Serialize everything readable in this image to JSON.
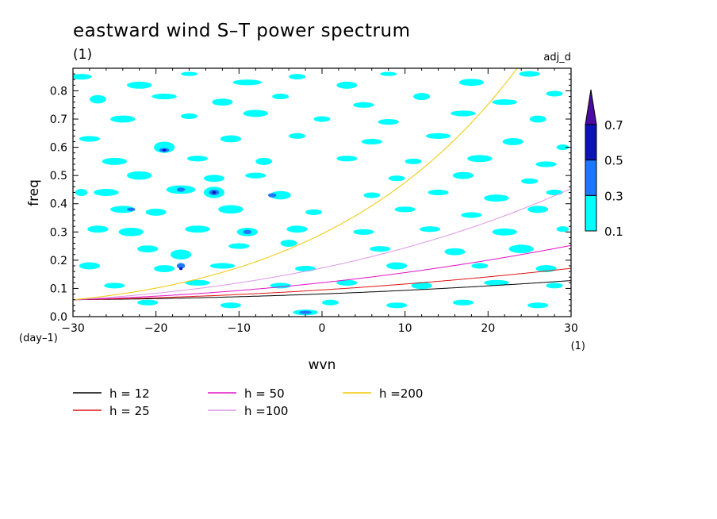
{
  "chart_data": {
    "type": "contour",
    "title": "eastward wind S–T power spectrum",
    "subtitle": "(1)",
    "tag": "adj_d",
    "xlabel": "wvn",
    "ylabel": "freq",
    "x_unit": "(1)",
    "y_unit": "(day–1)",
    "xlim": [
      -30,
      30
    ],
    "ylim": [
      0,
      0.88
    ],
    "x_ticks": [
      -30,
      -20,
      -10,
      0,
      10,
      20,
      30
    ],
    "y_ticks": [
      0.0,
      0.1,
      0.2,
      0.3,
      0.4,
      0.5,
      0.6,
      0.7,
      0.8
    ],
    "x_tick_labels": [
      "−30",
      "−20",
      "−10",
      "0",
      "10",
      "20",
      "30"
    ],
    "y_tick_labels": [
      "0.0",
      "0.1",
      "0.2",
      "0.3",
      "0.4",
      "0.5",
      "0.6",
      "0.7",
      "0.8"
    ],
    "colorbar": {
      "levels": [
        "0.1",
        "0.3",
        "0.5",
        "0.7"
      ],
      "colors": [
        "#00ffff",
        "#1e78ff",
        "#0a14b4",
        "#4b0aa0"
      ],
      "extend": "max"
    },
    "contour_blobs_level_0_1": [
      {
        "x": -29,
        "y": 0.85,
        "w": 2.5,
        "h": 0.02
      },
      {
        "x": -22,
        "y": 0.82,
        "w": 3,
        "h": 0.025
      },
      {
        "x": -16,
        "y": 0.86,
        "w": 2,
        "h": 0.015
      },
      {
        "x": -9,
        "y": 0.83,
        "w": 3.5,
        "h": 0.02
      },
      {
        "x": -3,
        "y": 0.85,
        "w": 2,
        "h": 0.02
      },
      {
        "x": 3,
        "y": 0.82,
        "w": 2.5,
        "h": 0.025
      },
      {
        "x": 8,
        "y": 0.86,
        "w": 2,
        "h": 0.015
      },
      {
        "x": 18,
        "y": 0.83,
        "w": 3,
        "h": 0.025
      },
      {
        "x": 25,
        "y": 0.86,
        "w": 2.5,
        "h": 0.02
      },
      {
        "x": -27,
        "y": 0.77,
        "w": 2,
        "h": 0.03
      },
      {
        "x": -19,
        "y": 0.78,
        "w": 3,
        "h": 0.02
      },
      {
        "x": -12,
        "y": 0.76,
        "w": 2.5,
        "h": 0.025
      },
      {
        "x": -5,
        "y": 0.78,
        "w": 2,
        "h": 0.02
      },
      {
        "x": 5,
        "y": 0.75,
        "w": 2.5,
        "h": 0.02
      },
      {
        "x": 12,
        "y": 0.78,
        "w": 2,
        "h": 0.025
      },
      {
        "x": 22,
        "y": 0.76,
        "w": 3,
        "h": 0.02
      },
      {
        "x": 28,
        "y": 0.79,
        "w": 2,
        "h": 0.02
      },
      {
        "x": -24,
        "y": 0.7,
        "w": 3,
        "h": 0.025
      },
      {
        "x": -16,
        "y": 0.71,
        "w": 2,
        "h": 0.02
      },
      {
        "x": -8,
        "y": 0.72,
        "w": 3,
        "h": 0.025
      },
      {
        "x": 0,
        "y": 0.7,
        "w": 2,
        "h": 0.02
      },
      {
        "x": 8,
        "y": 0.69,
        "w": 2.5,
        "h": 0.02
      },
      {
        "x": 17,
        "y": 0.72,
        "w": 3,
        "h": 0.02
      },
      {
        "x": 26,
        "y": 0.7,
        "w": 2,
        "h": 0.025
      },
      {
        "x": -28,
        "y": 0.63,
        "w": 2.5,
        "h": 0.02
      },
      {
        "x": -19,
        "y": 0.6,
        "w": 2.5,
        "h": 0.04
      },
      {
        "x": -11,
        "y": 0.63,
        "w": 2.5,
        "h": 0.025
      },
      {
        "x": -3,
        "y": 0.64,
        "w": 2,
        "h": 0.02
      },
      {
        "x": 6,
        "y": 0.62,
        "w": 2.5,
        "h": 0.02
      },
      {
        "x": 14,
        "y": 0.64,
        "w": 3,
        "h": 0.02
      },
      {
        "x": 23,
        "y": 0.62,
        "w": 2.5,
        "h": 0.025
      },
      {
        "x": 29,
        "y": 0.6,
        "w": 1.5,
        "h": 0.02
      },
      {
        "x": -25,
        "y": 0.55,
        "w": 3,
        "h": 0.025
      },
      {
        "x": -15,
        "y": 0.56,
        "w": 2.5,
        "h": 0.02
      },
      {
        "x": -7,
        "y": 0.55,
        "w": 2,
        "h": 0.025
      },
      {
        "x": 3,
        "y": 0.56,
        "w": 2.5,
        "h": 0.02
      },
      {
        "x": 11,
        "y": 0.55,
        "w": 2,
        "h": 0.02
      },
      {
        "x": 19,
        "y": 0.56,
        "w": 3,
        "h": 0.025
      },
      {
        "x": 27,
        "y": 0.54,
        "w": 2.5,
        "h": 0.02
      },
      {
        "x": -22,
        "y": 0.5,
        "w": 3,
        "h": 0.03
      },
      {
        "x": -13,
        "y": 0.49,
        "w": 2.5,
        "h": 0.025
      },
      {
        "x": -8,
        "y": 0.5,
        "w": 2.5,
        "h": 0.02
      },
      {
        "x": 9,
        "y": 0.49,
        "w": 2,
        "h": 0.02
      },
      {
        "x": 17,
        "y": 0.5,
        "w": 2.5,
        "h": 0.025
      },
      {
        "x": 25,
        "y": 0.48,
        "w": 2,
        "h": 0.02
      },
      {
        "x": -29,
        "y": 0.44,
        "w": 1.5,
        "h": 0.025
      },
      {
        "x": -26,
        "y": 0.44,
        "w": 3,
        "h": 0.025
      },
      {
        "x": -17,
        "y": 0.45,
        "w": 3.5,
        "h": 0.03
      },
      {
        "x": -13,
        "y": 0.44,
        "w": 2.5,
        "h": 0.04
      },
      {
        "x": -5,
        "y": 0.43,
        "w": 2.5,
        "h": 0.03
      },
      {
        "x": 6,
        "y": 0.43,
        "w": 2,
        "h": 0.02
      },
      {
        "x": 14,
        "y": 0.44,
        "w": 2.5,
        "h": 0.02
      },
      {
        "x": 21,
        "y": 0.42,
        "w": 3,
        "h": 0.025
      },
      {
        "x": 28,
        "y": 0.44,
        "w": 2,
        "h": 0.02
      },
      {
        "x": -24,
        "y": 0.38,
        "w": 3,
        "h": 0.025
      },
      {
        "x": -20,
        "y": 0.37,
        "w": 2.5,
        "h": 0.025
      },
      {
        "x": -11,
        "y": 0.38,
        "w": 3,
        "h": 0.03
      },
      {
        "x": -1,
        "y": 0.37,
        "w": 2,
        "h": 0.02
      },
      {
        "x": 10,
        "y": 0.38,
        "w": 2.5,
        "h": 0.02
      },
      {
        "x": 18,
        "y": 0.36,
        "w": 2.5,
        "h": 0.02
      },
      {
        "x": 26,
        "y": 0.38,
        "w": 2.5,
        "h": 0.025
      },
      {
        "x": -27,
        "y": 0.31,
        "w": 2.5,
        "h": 0.025
      },
      {
        "x": -23,
        "y": 0.3,
        "w": 3,
        "h": 0.03
      },
      {
        "x": -15,
        "y": 0.31,
        "w": 3,
        "h": 0.025
      },
      {
        "x": -9,
        "y": 0.3,
        "w": 2.5,
        "h": 0.03
      },
      {
        "x": -3,
        "y": 0.31,
        "w": 2.5,
        "h": 0.025
      },
      {
        "x": 5,
        "y": 0.3,
        "w": 2.5,
        "h": 0.02
      },
      {
        "x": 13,
        "y": 0.31,
        "w": 2.5,
        "h": 0.02
      },
      {
        "x": 22,
        "y": 0.3,
        "w": 3,
        "h": 0.025
      },
      {
        "x": 29,
        "y": 0.31,
        "w": 1.5,
        "h": 0.02
      },
      {
        "x": -21,
        "y": 0.24,
        "w": 2.5,
        "h": 0.025
      },
      {
        "x": -17,
        "y": 0.22,
        "w": 2.5,
        "h": 0.035
      },
      {
        "x": -10,
        "y": 0.25,
        "w": 2.5,
        "h": 0.02
      },
      {
        "x": -4,
        "y": 0.26,
        "w": 2,
        "h": 0.025
      },
      {
        "x": 7,
        "y": 0.24,
        "w": 2.5,
        "h": 0.02
      },
      {
        "x": 16,
        "y": 0.23,
        "w": 2.5,
        "h": 0.025
      },
      {
        "x": 24,
        "y": 0.24,
        "w": 3,
        "h": 0.03
      },
      {
        "x": -28,
        "y": 0.18,
        "w": 2.5,
        "h": 0.025
      },
      {
        "x": -19,
        "y": 0.17,
        "w": 2.5,
        "h": 0.025
      },
      {
        "x": -12,
        "y": 0.18,
        "w": 3,
        "h": 0.02
      },
      {
        "x": -2,
        "y": 0.17,
        "w": 2.5,
        "h": 0.02
      },
      {
        "x": 9,
        "y": 0.18,
        "w": 2.5,
        "h": 0.025
      },
      {
        "x": 19,
        "y": 0.18,
        "w": 2,
        "h": 0.02
      },
      {
        "x": 27,
        "y": 0.17,
        "w": 2.5,
        "h": 0.025
      },
      {
        "x": -25,
        "y": 0.11,
        "w": 2.5,
        "h": 0.02
      },
      {
        "x": -15,
        "y": 0.12,
        "w": 3,
        "h": 0.02
      },
      {
        "x": -5,
        "y": 0.11,
        "w": 2.5,
        "h": 0.02
      },
      {
        "x": 3,
        "y": 0.12,
        "w": 2.5,
        "h": 0.02
      },
      {
        "x": 12,
        "y": 0.11,
        "w": 2.5,
        "h": 0.025
      },
      {
        "x": 21,
        "y": 0.12,
        "w": 3,
        "h": 0.02
      },
      {
        "x": 28,
        "y": 0.11,
        "w": 2,
        "h": 0.02
      },
      {
        "x": -21,
        "y": 0.05,
        "w": 2.5,
        "h": 0.02
      },
      {
        "x": -11,
        "y": 0.04,
        "w": 2.5,
        "h": 0.02
      },
      {
        "x": 1,
        "y": 0.05,
        "w": 2,
        "h": 0.02
      },
      {
        "x": 9,
        "y": 0.04,
        "w": 2.5,
        "h": 0.02
      },
      {
        "x": 17,
        "y": 0.05,
        "w": 2.5,
        "h": 0.02
      },
      {
        "x": 26,
        "y": 0.04,
        "w": 2.5,
        "h": 0.02
      },
      {
        "x": -2,
        "y": 0.015,
        "w": 3,
        "h": 0.02
      }
    ],
    "contour_blobs_level_0_3": [
      {
        "x": -19,
        "y": 0.59,
        "w": 1.2,
        "h": 0.015
      },
      {
        "x": -17,
        "y": 0.45,
        "w": 1,
        "h": 0.015
      },
      {
        "x": -13,
        "y": 0.44,
        "w": 1.2,
        "h": 0.02
      },
      {
        "x": -6,
        "y": 0.43,
        "w": 1,
        "h": 0.015
      },
      {
        "x": -17,
        "y": 0.18,
        "w": 1,
        "h": 0.02
      },
      {
        "x": -2,
        "y": 0.015,
        "w": 1.5,
        "h": 0.012
      },
      {
        "x": -9,
        "y": 0.3,
        "w": 1,
        "h": 0.015
      },
      {
        "x": -23,
        "y": 0.38,
        "w": 1,
        "h": 0.012
      }
    ],
    "contour_blobs_level_0_5": [
      {
        "x": -19,
        "y": 0.59,
        "w": 0.5,
        "h": 0.008
      },
      {
        "x": -13,
        "y": 0.44,
        "w": 0.5,
        "h": 0.01
      },
      {
        "x": -17,
        "y": 0.17,
        "w": 0.4,
        "h": 0.01
      }
    ],
    "series": [
      {
        "name": "h = 12",
        "color": "#000000",
        "h": 12
      },
      {
        "name": "h = 25",
        "color": "#e01010",
        "h": 25
      },
      {
        "name": "h = 50",
        "color": "#e010c8",
        "h": 50
      },
      {
        "name": "h =100",
        "color": "#dc96e6",
        "h": 100
      },
      {
        "name": "h =200",
        "color": "#f0c800",
        "h": 200
      }
    ]
  }
}
